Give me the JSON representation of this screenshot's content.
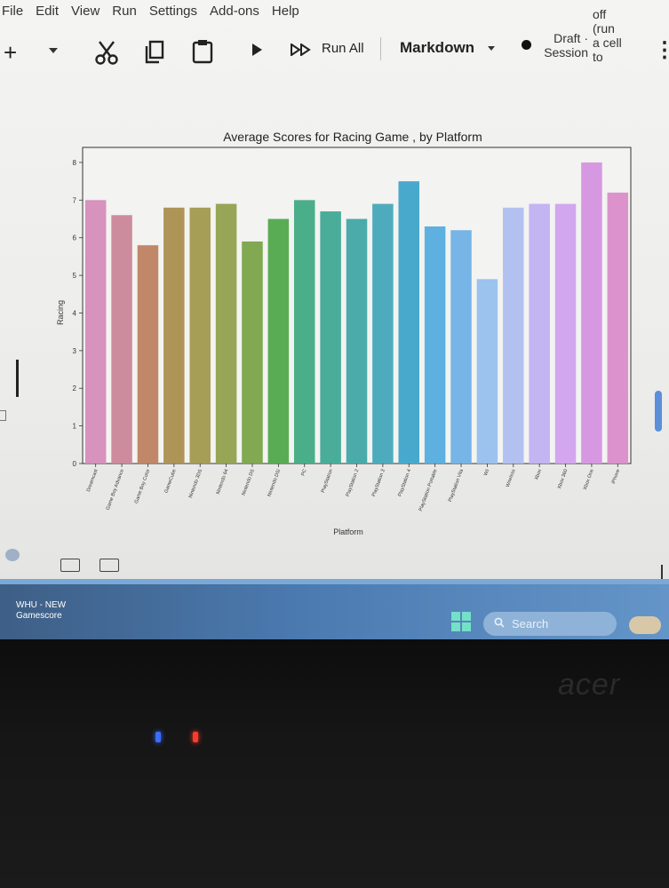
{
  "menu": [
    "File",
    "Edit",
    "View",
    "Run",
    "Settings",
    "Add-ons",
    "Help"
  ],
  "toolbar": {
    "add_label": "+",
    "run_all_label": "Run All",
    "cell_type": "Markdown",
    "session_line1": "Draft",
    "session_line2": "Session",
    "session_sep": "·",
    "hint_lines": [
      "off",
      "(run",
      "a cell",
      "to"
    ],
    "more_label": "⋮"
  },
  "chart_data": {
    "type": "bar",
    "title": "Average Scores for Racing Game , by Platform",
    "xlabel": "Platform",
    "ylabel": "Racing",
    "ylim": [
      0,
      8.4
    ],
    "yticks": [
      0,
      1,
      2,
      3,
      4,
      5,
      6,
      7,
      8
    ],
    "categories": [
      "Dreamcast",
      "Game Boy Advance",
      "Game Boy Color",
      "GameCube",
      "Nintendo 3DS",
      "Nintendo 64",
      "Nintendo DS",
      "Nintendo DSi",
      "PC",
      "PlayStation",
      "PlayStation 2",
      "PlayStation 3",
      "PlayStation 4",
      "PlayStation Portable",
      "PlayStation Vita",
      "Wii",
      "Wireless",
      "Xbox",
      "Xbox 360",
      "Xbox One",
      "iPhone"
    ],
    "values": [
      7.0,
      6.6,
      5.8,
      6.8,
      6.8,
      6.9,
      5.9,
      6.5,
      7.0,
      6.7,
      6.5,
      6.9,
      7.5,
      6.3,
      6.2,
      4.9,
      6.8,
      6.9,
      6.9,
      8.0,
      7.2
    ],
    "colors": [
      "#d792bd",
      "#cc8c9d",
      "#c08869",
      "#ae9457",
      "#a69e56",
      "#97a556",
      "#80a951",
      "#5aac54",
      "#4aae88",
      "#4aad9a",
      "#4aabaa",
      "#4eabbd",
      "#49a9cc",
      "#5db0df",
      "#76b5e5",
      "#9cc2ee",
      "#b3c1f1",
      "#c3b4f2",
      "#d3a7ef",
      "#d798e2",
      "#dc93cc"
    ]
  },
  "taskbar": {
    "weather_line1": "WHU - NEW",
    "weather_line2": "Gamescore",
    "search_placeholder": "Search"
  },
  "bezel": {
    "brand": "acer"
  }
}
